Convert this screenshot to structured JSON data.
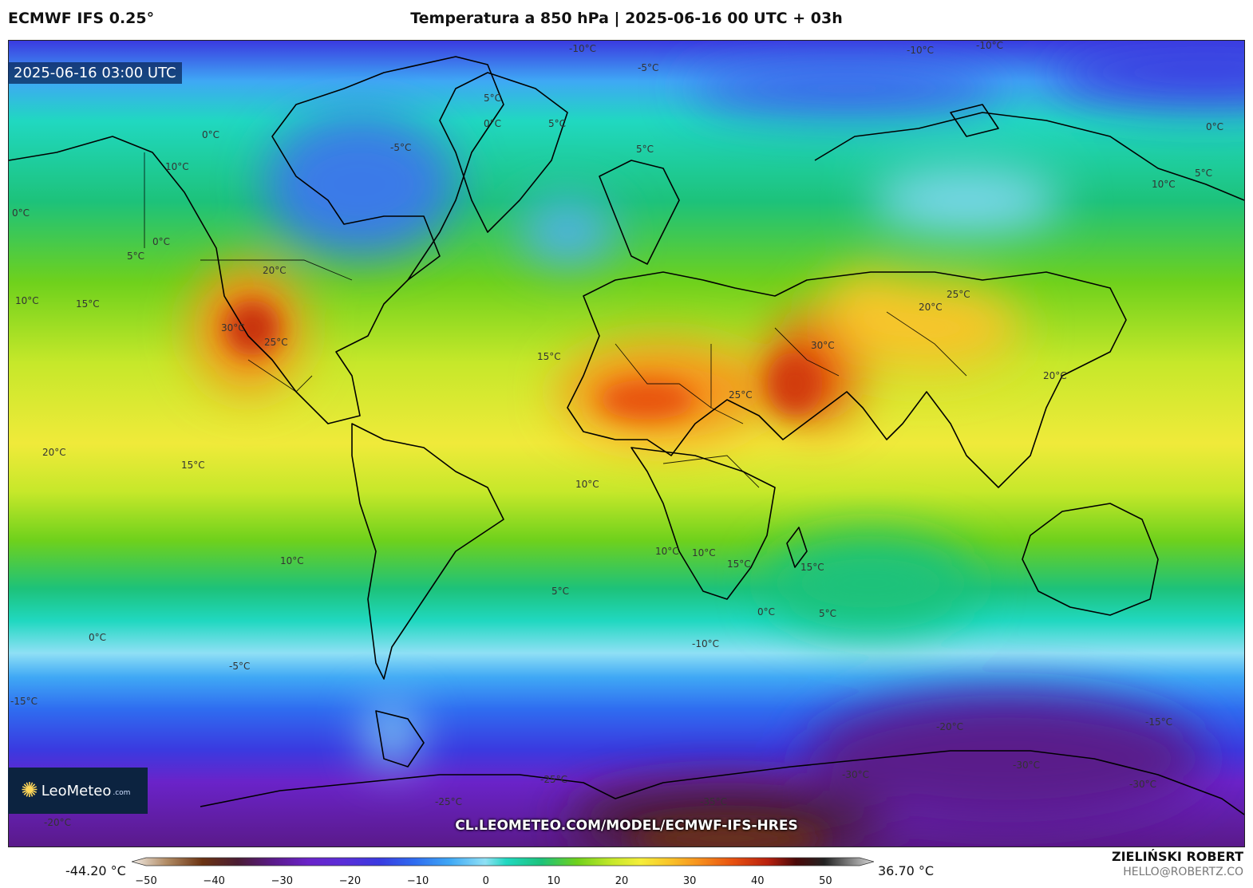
{
  "header": {
    "model": "ECMWF IFS 0.25°",
    "title": "Temperatura a 850 hPa | 2025-06-16 00 UTC + 03h"
  },
  "map": {
    "valid_time": "2025-06-16 03:00 UTC",
    "source_url": "CL.LEOMETEO.COM/MODEL/ECMWF-IFS-HRES",
    "logo": {
      "brand": "LeoMeteo",
      "domain": ".com"
    },
    "isotherm_labels": [
      "-10°C",
      "-10°C",
      "-10°C",
      "-5°C",
      "5°C",
      "0°C",
      "5°C",
      "-5°C",
      "5°C",
      "0°C",
      "10°C",
      "0°C",
      "5°C",
      "0°C",
      "20°C",
      "10°C",
      "15°C",
      "30°C",
      "25°C",
      "15°C",
      "25°C",
      "30°C",
      "20°C",
      "25°C",
      "20°C",
      "20°C",
      "15°C",
      "10°C",
      "10°C",
      "10°C",
      "10°C",
      "15°C",
      "15°C",
      "5°C",
      "0°C",
      "5°C",
      "0°C",
      "-5°C",
      "-10°C",
      "-15°C",
      "-20°C",
      "-15°C",
      "-25°C",
      "-25°C",
      "-35°C",
      "-30°C",
      "-30°C",
      "-30°C",
      "-20°C",
      "10°C",
      "5°C",
      "0°C"
    ]
  },
  "colorbar": {
    "min_label": "-44.20 °C",
    "max_label": "36.70 °C",
    "ticks": [
      "−50",
      "−40",
      "−30",
      "−20",
      "−10",
      "0",
      "10",
      "20",
      "30",
      "40",
      "50"
    ],
    "range": [
      -50,
      55
    ],
    "stops": [
      {
        "v": -50,
        "c": "#f2ece6"
      },
      {
        "v": -45,
        "c": "#b08a63"
      },
      {
        "v": -40,
        "c": "#6b3312"
      },
      {
        "v": -35,
        "c": "#4a1c33"
      },
      {
        "v": -30,
        "c": "#5a1a8a"
      },
      {
        "v": -25,
        "c": "#6a23c9"
      },
      {
        "v": -20,
        "c": "#5a2ed8"
      },
      {
        "v": -15,
        "c": "#3a3ae0"
      },
      {
        "v": -10,
        "c": "#2f6cf0"
      },
      {
        "v": -5,
        "c": "#3fa8f5"
      },
      {
        "v": 0,
        "c": "#8fe0f5"
      },
      {
        "v": 3,
        "c": "#20d8c0"
      },
      {
        "v": 8,
        "c": "#1dc27a"
      },
      {
        "v": 13,
        "c": "#6fd11c"
      },
      {
        "v": 18,
        "c": "#c6e82a"
      },
      {
        "v": 22,
        "c": "#f5ee3a"
      },
      {
        "v": 26,
        "c": "#f9c52a"
      },
      {
        "v": 30,
        "c": "#f7931e"
      },
      {
        "v": 35,
        "c": "#e85210"
      },
      {
        "v": 40,
        "c": "#b8200e"
      },
      {
        "v": 44,
        "c": "#4a0808"
      },
      {
        "v": 48,
        "c": "#222222"
      },
      {
        "v": 55,
        "c": "#d8d8d8"
      }
    ]
  },
  "credits": {
    "author": "ZIELIŃSKI ROBERT",
    "email": "HELLO@ROBERTZ.CO"
  }
}
